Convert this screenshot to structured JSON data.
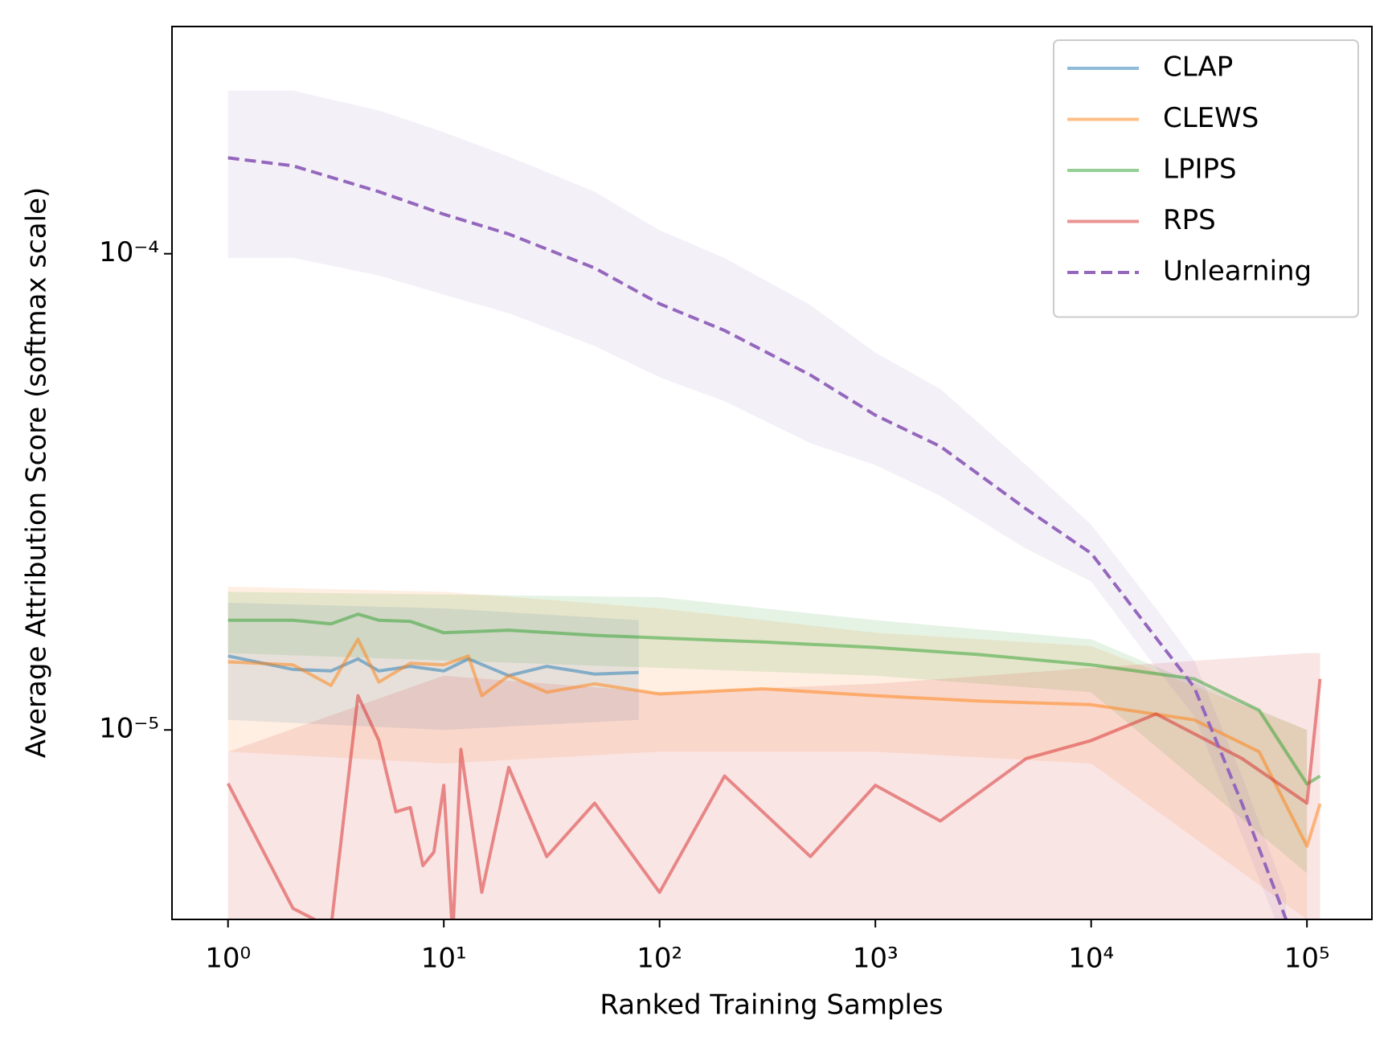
{
  "chart_data": {
    "type": "line",
    "xlabel": "Ranked Training Samples",
    "ylabel": "Average Attribution Score (softmax scale)",
    "xscale": "log",
    "yscale": "log",
    "xlim": [
      0.55,
      200000
    ],
    "ylim": [
      4e-06,
      0.0003
    ],
    "xticks": [
      {
        "value": 1,
        "label": "10⁰"
      },
      {
        "value": 10,
        "label": "10¹"
      },
      {
        "value": 100,
        "label": "10²"
      },
      {
        "value": 1000,
        "label": "10³"
      },
      {
        "value": 10000,
        "label": "10⁴"
      },
      {
        "value": 100000,
        "label": "10⁵"
      }
    ],
    "yticks": [
      {
        "value": 1e-05,
        "label": "10⁻⁵"
      },
      {
        "value": 0.0001,
        "label": "10⁻⁴"
      }
    ],
    "legend": "upper right",
    "series": [
      {
        "name": "CLAP",
        "color": "#1f77b4",
        "dashed": false,
        "x": [
          1,
          2,
          3,
          4,
          5,
          7,
          10,
          13,
          20,
          30,
          50,
          80
        ],
        "values": [
          1.43e-05,
          1.34e-05,
          1.33e-05,
          1.41e-05,
          1.33e-05,
          1.36e-05,
          1.33e-05,
          1.41e-05,
          1.3e-05,
          1.36e-05,
          1.31e-05,
          1.32e-05
        ],
        "band": {
          "x": [
            1,
            10,
            80
          ],
          "low": [
            1.05e-05,
            1e-05,
            1.05e-05
          ],
          "high": [
            1.85e-05,
            1.8e-05,
            1.7e-05
          ]
        }
      },
      {
        "name": "CLEWS",
        "color": "#ff7f0e",
        "dashed": false,
        "x": [
          1,
          2,
          3,
          4,
          5,
          7,
          10,
          13,
          15,
          20,
          30,
          50,
          100,
          300,
          1000,
          3000,
          10000,
          30000,
          60000,
          100000,
          115000
        ],
        "values": [
          1.39e-05,
          1.37e-05,
          1.24e-05,
          1.55e-05,
          1.26e-05,
          1.38e-05,
          1.37e-05,
          1.43e-05,
          1.18e-05,
          1.3e-05,
          1.2e-05,
          1.25e-05,
          1.19e-05,
          1.22e-05,
          1.18e-05,
          1.15e-05,
          1.13e-05,
          1.05e-05,
          9e-06,
          5.7e-06,
          7e-06
        ],
        "band": {
          "x": [
            1,
            10,
            100,
            1000,
            10000,
            100000
          ],
          "low": [
            9e-06,
            8.5e-06,
            9e-06,
            9e-06,
            8.5e-06,
            4e-06
          ],
          "high": [
            2e-05,
            1.95e-05,
            1.8e-05,
            1.6e-05,
            1.5e-05,
            1e-05
          ]
        }
      },
      {
        "name": "LPIPS",
        "color": "#2ca02c",
        "dashed": false,
        "x": [
          1,
          2,
          3,
          4,
          5,
          7,
          10,
          20,
          50,
          100,
          300,
          1000,
          3000,
          10000,
          30000,
          60000,
          100000,
          115000
        ],
        "values": [
          1.7e-05,
          1.7e-05,
          1.67e-05,
          1.75e-05,
          1.7e-05,
          1.69e-05,
          1.6e-05,
          1.62e-05,
          1.58e-05,
          1.56e-05,
          1.53e-05,
          1.49e-05,
          1.44e-05,
          1.37e-05,
          1.28e-05,
          1.1e-05,
          7.7e-06,
          8e-06
        ],
        "band": {
          "x": [
            1,
            100,
            1000,
            10000,
            100000
          ],
          "low": [
            1.45e-05,
            1.35e-05,
            1.3e-05,
            1.2e-05,
            5e-06
          ],
          "high": [
            1.95e-05,
            1.9e-05,
            1.7e-05,
            1.55e-05,
            1e-05
          ]
        }
      },
      {
        "name": "RPS",
        "color": "#d62728",
        "dashed": false,
        "x": [
          1,
          2,
          3,
          4,
          5,
          6,
          7,
          8,
          9,
          10,
          11,
          12,
          15,
          20,
          30,
          50,
          100,
          200,
          500,
          1000,
          2000,
          5000,
          10000,
          20000,
          50000,
          100000,
          115000
        ],
        "values": [
          7.72e-06,
          4.22e-06,
          3.84e-06,
          1.18e-05,
          9.5e-06,
          6.73e-06,
          6.87e-06,
          5.19e-06,
          5.54e-06,
          7.65e-06,
          3.68e-06,
          9.1e-06,
          4.56e-06,
          8.34e-06,
          5.42e-06,
          7.02e-06,
          4.56e-06,
          8e-06,
          5.42e-06,
          7.65e-06,
          6.44e-06,
          8.71e-06,
          9.5e-06,
          1.08e-05,
          8.71e-06,
          7.02e-06,
          1.28e-05
        ],
        "band": {
          "x": [
            1,
            10,
            100,
            1000,
            10000,
            100000,
            115000
          ],
          "low": [
            3e-06,
            3e-06,
            3e-06,
            3e-06,
            3e-06,
            3e-06,
            3e-06
          ],
          "high": [
            9e-06,
            1.3e-05,
            1.2e-05,
            1.25e-05,
            1.35e-05,
            1.45e-05,
            1.45e-05
          ]
        }
      },
      {
        "name": "Unlearning",
        "color": "#9467bd",
        "dashed": true,
        "x": [
          1,
          2,
          5,
          10,
          20,
          50,
          100,
          200,
          500,
          1000,
          2000,
          5000,
          10000,
          20000,
          30000,
          50000,
          80000
        ],
        "values": [
          0.000159,
          0.000153,
          0.000135,
          0.000121,
          0.00011,
          9.33e-05,
          7.85e-05,
          6.9e-05,
          5.56e-05,
          4.58e-05,
          3.94e-05,
          2.91e-05,
          2.35e-05,
          1.56e-05,
          1.23e-05,
          7e-06,
          4e-06
        ],
        "band": {
          "x": [
            1,
            2,
            5,
            10,
            20,
            50,
            100,
            200,
            500,
            1000,
            2000,
            5000,
            10000,
            20000,
            30000,
            50000,
            80000
          ],
          "low": [
            9.8e-05,
            9.8e-05,
            9e-05,
            8.2e-05,
            7.5e-05,
            6.4e-05,
            5.5e-05,
            4.9e-05,
            4e-05,
            3.6e-05,
            3.1e-05,
            2.4e-05,
            2.05e-05,
            1.35e-05,
            1.07e-05,
            6e-06,
            3.5e-06
          ],
          "high": [
            0.00022,
            0.00022,
            0.0002,
            0.00018,
            0.00016,
            0.000135,
            0.000112,
            9.8e-05,
            7.8e-05,
            6.2e-05,
            5.2e-05,
            3.6e-05,
            2.7e-05,
            1.8e-05,
            1.4e-05,
            8e-06,
            4.5e-06
          ]
        }
      }
    ]
  }
}
